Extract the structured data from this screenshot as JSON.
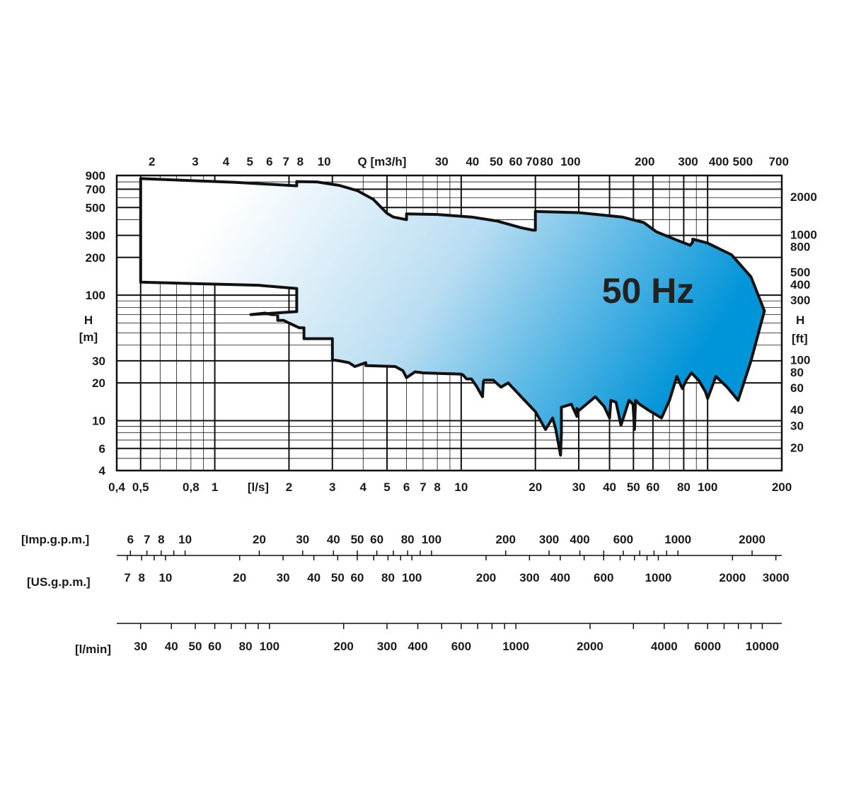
{
  "chart_data": {
    "type": "area",
    "title": "50 Hz",
    "x_scale": "log",
    "y_scale": "log",
    "x_range_ls": [
      0.4,
      200
    ],
    "y_range_m": [
      4,
      900
    ],
    "grid": true,
    "axes": {
      "bottom_unit": "[l/s]",
      "bottom_ticks": [
        {
          "v": 0.4,
          "t": "0,4"
        },
        {
          "v": 0.5,
          "t": "0,5"
        },
        {
          "v": 0.8,
          "t": "0,8"
        },
        {
          "v": 1,
          "t": "1"
        },
        {
          "v": 2,
          "t": "2"
        },
        {
          "v": 3,
          "t": "3"
        },
        {
          "v": 4,
          "t": "4"
        },
        {
          "v": 5,
          "t": "5"
        },
        {
          "v": 6,
          "t": "6"
        },
        {
          "v": 7,
          "t": "7"
        },
        {
          "v": 8,
          "t": "8"
        },
        {
          "v": 10,
          "t": "10"
        },
        {
          "v": 20,
          "t": "20"
        },
        {
          "v": 30,
          "t": "30"
        },
        {
          "v": 40,
          "t": "40"
        },
        {
          "v": 50,
          "t": "50"
        },
        {
          "v": 60,
          "t": "60"
        },
        {
          "v": 80,
          "t": "80"
        },
        {
          "v": 100,
          "t": "100"
        },
        {
          "v": 200,
          "t": "200"
        }
      ],
      "top_unit": "Q  [m3/h]",
      "top_ticks": [
        {
          "v": 2,
          "t": "2"
        },
        {
          "v": 3,
          "t": "3"
        },
        {
          "v": 4,
          "t": "4"
        },
        {
          "v": 5,
          "t": "5"
        },
        {
          "v": 6,
          "t": "6"
        },
        {
          "v": 7,
          "t": "7"
        },
        {
          "v": 8,
          "t": "8"
        },
        {
          "v": 10,
          "t": "10"
        },
        {
          "v": 30,
          "t": "30"
        },
        {
          "v": 40,
          "t": "40"
        },
        {
          "v": 50,
          "t": "50"
        },
        {
          "v": 60,
          "t": "60"
        },
        {
          "v": 70,
          "t": "70"
        },
        {
          "v": 80,
          "t": "80"
        },
        {
          "v": 100,
          "t": "100"
        },
        {
          "v": 200,
          "t": "200"
        },
        {
          "v": 300,
          "t": "300"
        },
        {
          "v": 400,
          "t": "400"
        },
        {
          "v": 500,
          "t": "500"
        },
        {
          "v": 700,
          "t": "700"
        }
      ],
      "left_label": "H",
      "left_unit": "[m]",
      "left_ticks": [
        {
          "v": 900,
          "t": "900"
        },
        {
          "v": 700,
          "t": "700"
        },
        {
          "v": 500,
          "t": "500"
        },
        {
          "v": 300,
          "t": "300"
        },
        {
          "v": 200,
          "t": "200"
        },
        {
          "v": 100,
          "t": "100"
        },
        {
          "v": 30,
          "t": "30"
        },
        {
          "v": 20,
          "t": "20"
        },
        {
          "v": 10,
          "t": "10"
        },
        {
          "v": 6,
          "t": "6"
        },
        {
          "v": 4,
          "t": "4"
        }
      ],
      "right_label": "H",
      "right_unit": "[ft]",
      "right_ticks": [
        {
          "v": 2000,
          "t": "2000"
        },
        {
          "v": 1000,
          "t": "1000"
        },
        {
          "v": 800,
          "t": "800"
        },
        {
          "v": 500,
          "t": "500"
        },
        {
          "v": 400,
          "t": "400"
        },
        {
          "v": 300,
          "t": "300"
        },
        {
          "v": 100,
          "t": "100"
        },
        {
          "v": 80,
          "t": "80"
        },
        {
          "v": 60,
          "t": "60"
        },
        {
          "v": 40,
          "t": "40"
        },
        {
          "v": 30,
          "t": "30"
        },
        {
          "v": 20,
          "t": "20"
        }
      ],
      "imp_unit": "[Imp.g.p.m.]",
      "imp_ticks": [
        {
          "v": 6,
          "t": "6"
        },
        {
          "v": 7,
          "t": "7"
        },
        {
          "v": 8,
          "t": "8"
        },
        {
          "v": 10,
          "t": "10"
        },
        {
          "v": 20,
          "t": "20"
        },
        {
          "v": 30,
          "t": "30"
        },
        {
          "v": 40,
          "t": "40"
        },
        {
          "v": 50,
          "t": "50"
        },
        {
          "v": 60,
          "t": "60"
        },
        {
          "v": 80,
          "t": "80"
        },
        {
          "v": 100,
          "t": "100"
        },
        {
          "v": 200,
          "t": "200"
        },
        {
          "v": 300,
          "t": "300"
        },
        {
          "v": 400,
          "t": "400"
        },
        {
          "v": 600,
          "t": "600"
        },
        {
          "v": 1000,
          "t": "1000"
        },
        {
          "v": 2000,
          "t": "2000"
        }
      ],
      "us_unit": "[US.g.p.m.]",
      "us_ticks": [
        {
          "v": 7,
          "t": "7"
        },
        {
          "v": 8,
          "t": "8"
        },
        {
          "v": 10,
          "t": "10"
        },
        {
          "v": 20,
          "t": "20"
        },
        {
          "v": 30,
          "t": "30"
        },
        {
          "v": 40,
          "t": "40"
        },
        {
          "v": 50,
          "t": "50"
        },
        {
          "v": 60,
          "t": "60"
        },
        {
          "v": 80,
          "t": "80"
        },
        {
          "v": 100,
          "t": "100"
        },
        {
          "v": 200,
          "t": "200"
        },
        {
          "v": 300,
          "t": "300"
        },
        {
          "v": 400,
          "t": "400"
        },
        {
          "v": 600,
          "t": "600"
        },
        {
          "v": 1000,
          "t": "1000"
        },
        {
          "v": 2000,
          "t": "2000"
        },
        {
          "v": 3000,
          "t": "3000"
        }
      ],
      "lmin_unit": "[l/min]",
      "lmin_ticks": [
        {
          "v": 30,
          "t": "30"
        },
        {
          "v": 40,
          "t": "40"
        },
        {
          "v": 50,
          "t": "50"
        },
        {
          "v": 60,
          "t": "60"
        },
        {
          "v": 80,
          "t": "80"
        },
        {
          "v": 100,
          "t": "100"
        },
        {
          "v": 200,
          "t": "200"
        },
        {
          "v": 300,
          "t": "300"
        },
        {
          "v": 400,
          "t": "400"
        },
        {
          "v": 600,
          "t": "600"
        },
        {
          "v": 1000,
          "t": "1000"
        },
        {
          "v": 2000,
          "t": "2000"
        },
        {
          "v": 4000,
          "t": "4000"
        },
        {
          "v": 6000,
          "t": "6000"
        },
        {
          "v": 10000,
          "t": "10000"
        }
      ]
    },
    "envelope": {
      "description_points": "flow Q in l/s, head H in m; outline of the pump selection range",
      "points": [
        [
          0.5,
          850
        ],
        [
          1.2,
          795
        ],
        [
          2.15,
          745
        ],
        [
          2.15,
          805
        ],
        [
          2.6,
          800
        ],
        [
          3.2,
          750
        ],
        [
          3.8,
          680
        ],
        [
          4.4,
          580
        ],
        [
          5.0,
          450
        ],
        [
          5.3,
          420
        ],
        [
          6.0,
          400
        ],
        [
          6.0,
          445
        ],
        [
          8,
          440
        ],
        [
          11,
          420
        ],
        [
          14,
          390
        ],
        [
          17.5,
          345
        ],
        [
          19.5,
          330
        ],
        [
          20,
          330
        ],
        [
          20,
          465
        ],
        [
          30,
          455
        ],
        [
          45,
          420
        ],
        [
          55,
          380
        ],
        [
          62,
          320
        ],
        [
          75,
          275
        ],
        [
          85,
          250
        ],
        [
          87,
          265
        ],
        [
          87,
          280
        ],
        [
          100,
          260
        ],
        [
          125,
          210
        ],
        [
          150,
          140
        ],
        [
          170,
          75
        ],
        [
          150,
          30
        ],
        [
          133,
          14.5
        ],
        [
          120,
          18.5
        ],
        [
          108,
          22.5
        ],
        [
          100,
          15
        ],
        [
          98,
          17
        ],
        [
          92,
          21
        ],
        [
          86,
          24
        ],
        [
          82,
          21
        ],
        [
          79,
          18
        ],
        [
          75,
          22.5
        ],
        [
          70,
          14.5
        ],
        [
          65,
          10.5
        ],
        [
          58,
          12
        ],
        [
          53,
          13.5
        ],
        [
          51,
          14.5
        ],
        [
          50.5,
          8.5
        ],
        [
          49.8,
          13.5
        ],
        [
          48,
          14.5
        ],
        [
          44.5,
          9.2
        ],
        [
          42.5,
          14
        ],
        [
          40.5,
          14.5
        ],
        [
          40,
          10.5
        ],
        [
          38,
          13
        ],
        [
          35,
          15.5
        ],
        [
          30,
          12
        ],
        [
          29.5,
          12.5
        ],
        [
          29.5,
          10.8
        ],
        [
          28,
          13.5
        ],
        [
          25.5,
          12.8
        ],
        [
          25.5,
          8
        ],
        [
          25.3,
          5.3
        ],
        [
          24.2,
          8.5
        ],
        [
          23.5,
          10.5
        ],
        [
          22,
          8.5
        ],
        [
          20,
          11.8
        ],
        [
          17.8,
          15
        ],
        [
          15.5,
          20
        ],
        [
          14.5,
          18.5
        ],
        [
          13.5,
          21
        ],
        [
          12.4,
          21
        ],
        [
          12.3,
          20.5
        ],
        [
          12.2,
          15.5
        ],
        [
          11.5,
          19
        ],
        [
          11,
          21.5
        ],
        [
          10.5,
          21.5
        ],
        [
          10.2,
          23
        ],
        [
          10,
          23.5
        ],
        [
          7,
          24
        ],
        [
          6.5,
          24.5
        ],
        [
          6.0,
          22
        ],
        [
          5.8,
          25
        ],
        [
          5.4,
          27
        ],
        [
          4.1,
          27.5
        ],
        [
          4.1,
          29
        ],
        [
          3.7,
          27
        ],
        [
          3.6,
          28
        ],
        [
          3.5,
          29
        ],
        [
          3.2,
          30
        ],
        [
          3.0,
          30.5
        ],
        [
          3.0,
          45
        ],
        [
          2.3,
          45
        ],
        [
          2.3,
          55
        ],
        [
          2.2,
          55
        ],
        [
          2.0,
          60
        ],
        [
          1.9,
          63
        ],
        [
          1.8,
          63
        ],
        [
          1.8,
          70
        ],
        [
          1.7,
          70
        ],
        [
          1.6,
          72
        ],
        [
          1.5,
          71
        ],
        [
          1.4,
          70
        ],
        [
          2.15,
          74
        ],
        [
          2.15,
          113
        ],
        [
          1.5,
          120
        ],
        [
          0.5,
          127
        ]
      ]
    }
  },
  "colors": {
    "grid": "#111111",
    "gradient_start": "#ffffff",
    "gradient_mid": "#b9ddf2",
    "gradient_end": "#0094d8",
    "outline": "#111111"
  }
}
